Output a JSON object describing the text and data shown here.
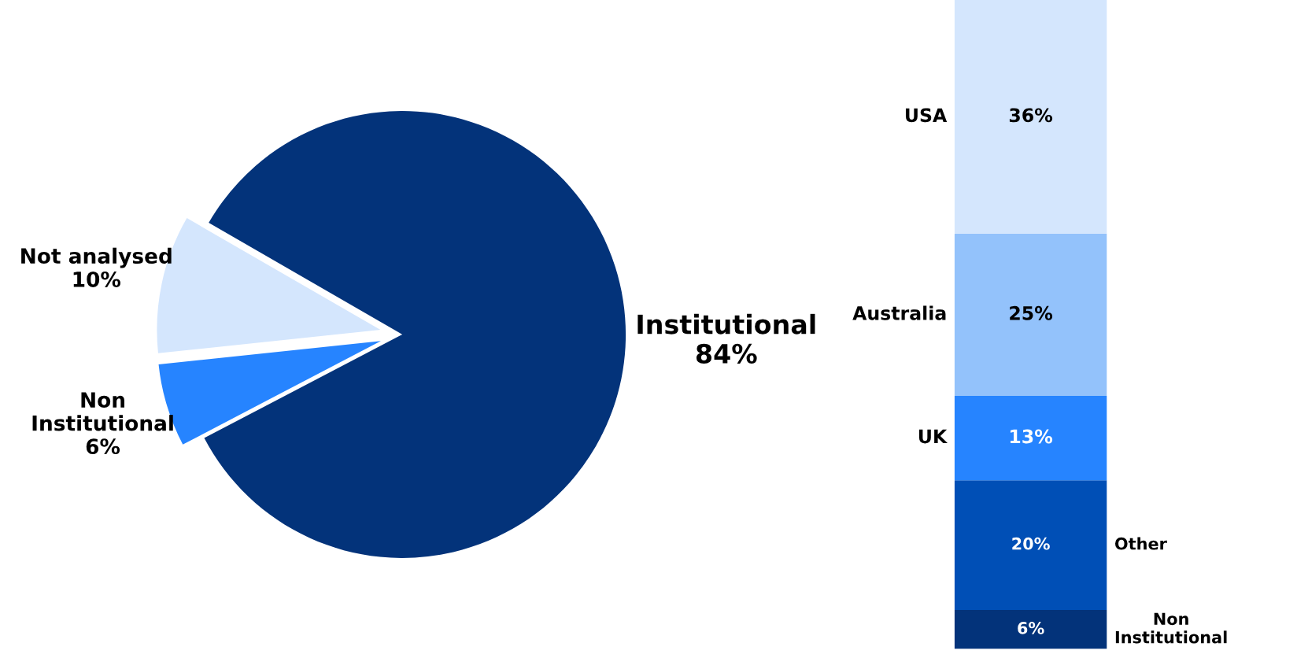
{
  "chart_data": [
    {
      "type": "pie",
      "categories": [
        "Institutional",
        "Non\nInstitutional",
        "Not analysed"
      ],
      "values": [
        84,
        6,
        10
      ],
      "value_labels": [
        "84%",
        "6%",
        "10%"
      ],
      "colors": [
        "#03337a",
        "#2684ff",
        "#d4e6fd"
      ]
    },
    {
      "type": "bar",
      "stacked": true,
      "categories": [
        null
      ],
      "series": [
        {
          "name": "Non\nInstitutional",
          "color": "#03337a",
          "values": [
            6
          ],
          "value_labels": [
            "6%"
          ]
        },
        {
          "name": "Other",
          "color": "#004fb6",
          "values": [
            20
          ],
          "value_labels": [
            "20%"
          ]
        },
        {
          "name": "UK",
          "color": "#2684ff",
          "values": [
            13
          ],
          "value_labels": [
            "13%"
          ]
        },
        {
          "name": "Australia",
          "color": "#93c2fb",
          "values": [
            25
          ],
          "value_labels": [
            "25%"
          ]
        },
        {
          "name": "USA",
          "color": "#d4e6fd",
          "values": [
            36
          ],
          "value_labels": [
            "36%"
          ]
        }
      ]
    }
  ]
}
